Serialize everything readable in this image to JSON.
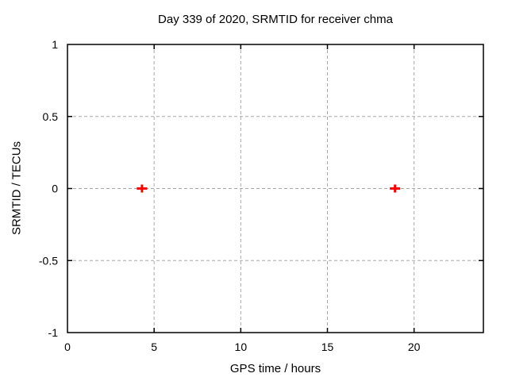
{
  "chart_data": {
    "type": "scatter",
    "title": "Day 339 of 2020, SRMTID for receiver chma",
    "xlabel": "GPS time / hours",
    "ylabel": "SRMTID / TECUs",
    "xlim": [
      0,
      24
    ],
    "ylim": [
      -1,
      1
    ],
    "xticks": [
      0,
      5,
      10,
      15,
      20
    ],
    "yticks": [
      -1,
      -0.5,
      0,
      0.5,
      1
    ],
    "grid": true,
    "grid_style": "dashed",
    "legend": "none",
    "series": [
      {
        "name": "SRMTID",
        "marker": "plus",
        "color": "#ff0000",
        "points": [
          {
            "x": 4.3,
            "y": 0.0
          },
          {
            "x": 18.9,
            "y": 0.0
          }
        ]
      }
    ],
    "colors": {
      "background": "#ffffff",
      "axis": "#000000",
      "grid": "#a8a8a8",
      "text": "#000000",
      "marker": "#ff0000"
    }
  }
}
